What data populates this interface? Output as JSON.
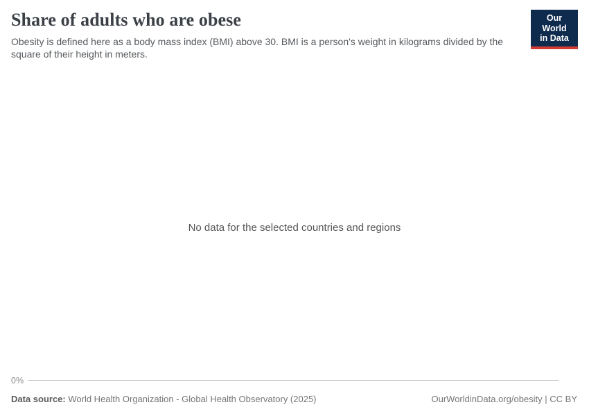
{
  "header": {
    "title": "Share of adults who are obese",
    "subtitle": "Obesity is defined here as a body mass index (BMI) above 30. BMI is a person's weight in kilograms divided by the square of their height in meters."
  },
  "logo": {
    "line1": "Our World",
    "line2": "in Data"
  },
  "chart": {
    "no_data_message": "No data for the selected countries and regions",
    "y_axis_tick": "0%"
  },
  "footer": {
    "source_label": "Data source:",
    "source_text": " World Health Organization - Global Health Observatory (2025)",
    "attribution": "OurWorldinData.org/obesity | CC BY"
  },
  "colors": {
    "title_text": "#3b4046",
    "subtitle_text": "#565a5e",
    "logo_background": "#0e2a4d",
    "logo_accent_red": "#d23a33",
    "axis_line": "#bdbdbd",
    "tick_label": "#8d8d8d",
    "footer_text": "#757575"
  },
  "chart_data": {
    "type": "line",
    "title": "Share of adults who are obese",
    "subtitle": "Obesity is defined here as a body mass index (BMI) above 30. BMI is a person's weight in kilograms divided by the square of their height in meters.",
    "categories": [],
    "series": [],
    "y_ticks": [
      "0%"
    ],
    "grid": false,
    "legend": "none",
    "no_data_message": "No data for the selected countries and regions",
    "source": "World Health Organization - Global Health Observatory (2025)"
  }
}
